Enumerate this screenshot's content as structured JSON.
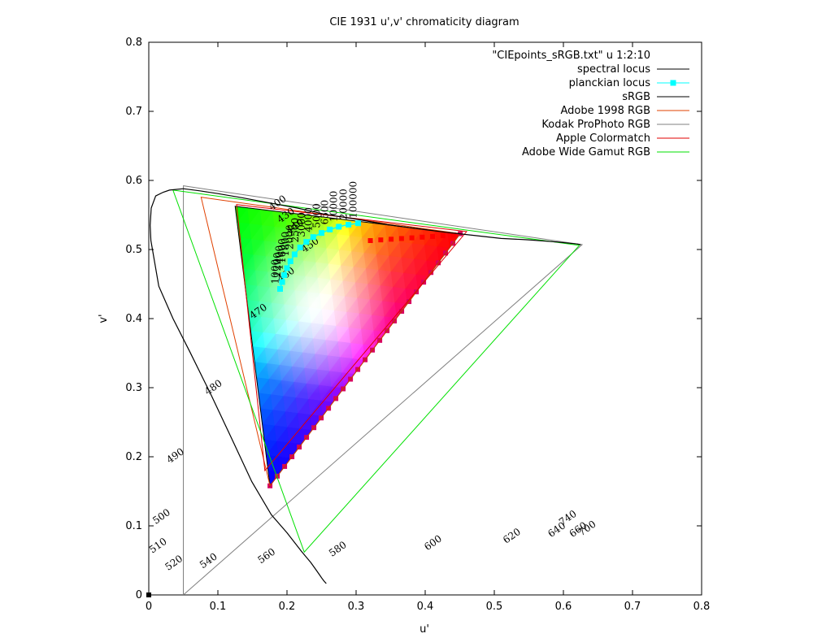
{
  "chart_data": {
    "type": "scatter",
    "title": "CIE 1931 u',v' chromaticity diagram",
    "xlabel": "u'",
    "ylabel": "v'",
    "xlim": [
      0,
      0.8
    ],
    "ylim": [
      0,
      0.8
    ],
    "x_ticks": [
      "0",
      "0.1",
      "0.2",
      "0.3",
      "0.4",
      "0.5",
      "0.6",
      "0.7",
      "0.8"
    ],
    "y_ticks": [
      "0",
      "0.1",
      "0.2",
      "0.3",
      "0.4",
      "0.5",
      "0.6",
      "0.7",
      "0.8"
    ],
    "grid": false,
    "legend_position": "top-right",
    "legend": [
      {
        "label": "\"CIEpoints_sRGB.txt\" u 1:2:10",
        "color": "",
        "kind": "none"
      },
      {
        "label": "spectral locus",
        "color": "#000000",
        "kind": "line"
      },
      {
        "label": "planckian locus",
        "color": "#00ffff",
        "kind": "linepoint"
      },
      {
        "label": "sRGB",
        "color": "#000000",
        "kind": "line"
      },
      {
        "label": "Adobe 1998 RGB",
        "color": "#e04000",
        "kind": "line"
      },
      {
        "label": "Kodak ProPhoto RGB",
        "color": "#808080",
        "kind": "line"
      },
      {
        "label": "Apple Colormatch",
        "color": "#e00000",
        "kind": "line"
      },
      {
        "label": "Adobe Wide Gamut RGB",
        "color": "#00e000",
        "kind": "line"
      }
    ],
    "spectral_locus": {
      "color": "#000000",
      "points": [
        [
          0.2568,
          0.0165
        ],
        [
          0.2559,
          0.0175
        ],
        [
          0.2537,
          0.02
        ],
        [
          0.2512,
          0.0232
        ],
        [
          0.2472,
          0.029
        ],
        [
          0.2422,
          0.036
        ],
        [
          0.2343,
          0.047
        ],
        [
          0.2211,
          0.0629
        ],
        [
          0.2,
          0.09
        ],
        [
          0.1773,
          0.1161
        ],
        [
          0.1491,
          0.164
        ],
        [
          0.1206,
          0.225
        ],
        [
          0.0909,
          0.288
        ],
        [
          0.0594,
          0.352
        ],
        [
          0.035,
          0.4
        ],
        [
          0.0145,
          0.447
        ],
        [
          0.003,
          0.513
        ],
        [
          0.002,
          0.535
        ],
        [
          0.0035,
          0.56
        ],
        [
          0.01,
          0.5775
        ],
        [
          0.021,
          0.583
        ],
        [
          0.03,
          0.586
        ],
        [
          0.05,
          0.588
        ],
        [
          0.074,
          0.585
        ],
        [
          0.0999,
          0.581
        ],
        [
          0.135,
          0.575
        ],
        [
          0.172,
          0.568
        ],
        [
          0.215,
          0.56
        ],
        [
          0.255,
          0.551
        ],
        [
          0.3,
          0.544
        ],
        [
          0.345,
          0.536
        ],
        [
          0.39,
          0.53
        ],
        [
          0.43,
          0.525
        ],
        [
          0.465,
          0.521
        ],
        [
          0.51,
          0.516
        ],
        [
          0.55,
          0.514
        ],
        [
          0.59,
          0.511
        ],
        [
          0.62,
          0.508
        ],
        [
          0.625,
          0.507
        ]
      ],
      "wavelength_labels": [
        {
          "u": 0.178,
          "v": 0.556,
          "text": "400"
        },
        {
          "u": 0.19,
          "v": 0.538,
          "text": "430"
        },
        {
          "u": 0.203,
          "v": 0.522,
          "text": "440"
        },
        {
          "u": 0.225,
          "v": 0.495,
          "text": "450"
        },
        {
          "u": 0.19,
          "v": 0.452,
          "text": "460"
        },
        {
          "u": 0.15,
          "v": 0.399,
          "text": "470"
        },
        {
          "u": 0.085,
          "v": 0.289,
          "text": "480"
        },
        {
          "u": 0.03,
          "v": 0.19,
          "text": "490"
        },
        {
          "u": 0.01,
          "v": 0.102,
          "text": "500"
        },
        {
          "u": 0.005,
          "v": 0.06,
          "text": "510"
        },
        {
          "u": 0.028,
          "v": 0.035,
          "text": "520"
        },
        {
          "u": 0.078,
          "v": 0.038,
          "text": "540"
        },
        {
          "u": 0.162,
          "v": 0.045,
          "text": "560"
        },
        {
          "u": 0.265,
          "v": 0.055,
          "text": "580"
        },
        {
          "u": 0.403,
          "v": 0.064,
          "text": "600"
        },
        {
          "u": 0.517,
          "v": 0.074,
          "text": "620"
        },
        {
          "u": 0.582,
          "v": 0.083,
          "text": "640"
        },
        {
          "u": 0.613,
          "v": 0.083,
          "text": "660"
        },
        {
          "u": 0.626,
          "v": 0.085,
          "text": "700"
        },
        {
          "u": 0.598,
          "v": 0.1,
          "text": "740"
        }
      ]
    },
    "planckian_locus": {
      "color": "#00ffff",
      "marker": "square",
      "points": [
        [
          0.19,
          0.443
        ],
        [
          0.193,
          0.453
        ],
        [
          0.196,
          0.463
        ],
        [
          0.2,
          0.473
        ],
        [
          0.205,
          0.483
        ],
        [
          0.211,
          0.493
        ],
        [
          0.219,
          0.503
        ],
        [
          0.228,
          0.511
        ],
        [
          0.238,
          0.518
        ],
        [
          0.25,
          0.524
        ],
        [
          0.262,
          0.529
        ],
        [
          0.275,
          0.533
        ],
        [
          0.289,
          0.536
        ],
        [
          0.303,
          0.538
        ]
      ],
      "cct_labels": [
        "1000",
        "1200",
        "1400",
        "1600",
        "1800",
        "2000",
        "2500",
        "3000",
        "4000",
        "5000",
        "6500",
        "10000",
        "20000",
        "100000"
      ]
    },
    "gamuts": [
      {
        "name": "sRGB",
        "color": "#000000",
        "vertices": [
          [
            0.4507,
            0.5229
          ],
          [
            0.125,
            0.5625
          ],
          [
            0.1754,
            0.1579
          ]
        ]
      },
      {
        "name": "Adobe 1998 RGB",
        "color": "#e04000",
        "vertices": [
          [
            0.4507,
            0.5229
          ],
          [
            0.0757,
            0.5757
          ],
          [
            0.1754,
            0.1579
          ]
        ]
      },
      {
        "name": "Kodak ProPhoto RGB",
        "color": "#808080",
        "vertices": [
          [
            0.627,
            0.507
          ],
          [
            0.0501,
            0.5922
          ],
          [
            0.05,
            0.0
          ]
        ]
      },
      {
        "name": "Apple Colormatch",
        "color": "#e00000",
        "vertices": [
          [
            0.46,
            0.526
          ],
          [
            0.127,
            0.565
          ],
          [
            0.168,
            0.18
          ]
        ]
      },
      {
        "name": "Adobe Wide Gamut RGB",
        "color": "#00e000",
        "vertices": [
          [
            0.623,
            0.506
          ],
          [
            0.035,
            0.586
          ],
          [
            0.225,
            0.062
          ]
        ]
      }
    ],
    "srgb_fill": {
      "red": [
        0.4507,
        0.5229
      ],
      "green": [
        0.125,
        0.5625
      ],
      "blue": [
        0.1754,
        0.1579
      ]
    }
  }
}
